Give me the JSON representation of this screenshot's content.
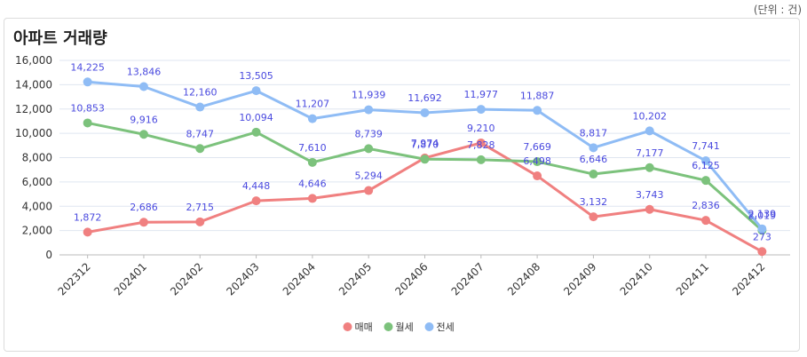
{
  "unit_label": "(단위 : 건)",
  "chart_data": {
    "type": "line",
    "title": "아파트 거래량",
    "xlabel": "",
    "ylabel": "",
    "ylim": [
      0,
      16000
    ],
    "yticks": [
      0,
      2000,
      4000,
      6000,
      8000,
      10000,
      12000,
      14000,
      16000
    ],
    "grid": true,
    "legend_position": "bottom",
    "categories": [
      "202312",
      "202401",
      "202402",
      "202403",
      "202404",
      "202405",
      "202406",
      "202407",
      "202408",
      "202409",
      "202410",
      "202411",
      "202412"
    ],
    "series": [
      {
        "name": "매매",
        "color": "#f08080",
        "values": [
          1872,
          2686,
          2715,
          4448,
          4646,
          5294,
          7974,
          9210,
          6498,
          3132,
          3743,
          2836,
          273
        ]
      },
      {
        "name": "월세",
        "color": "#7cc27c",
        "values": [
          10853,
          9916,
          8747,
          10094,
          7610,
          8739,
          7870,
          7828,
          7669,
          6646,
          7177,
          6125,
          2019
        ]
      },
      {
        "name": "전세",
        "color": "#8fbcf5",
        "values": [
          14225,
          13846,
          12160,
          13505,
          11207,
          11939,
          11692,
          11977,
          11887,
          8817,
          10202,
          7741,
          2139
        ]
      }
    ]
  }
}
